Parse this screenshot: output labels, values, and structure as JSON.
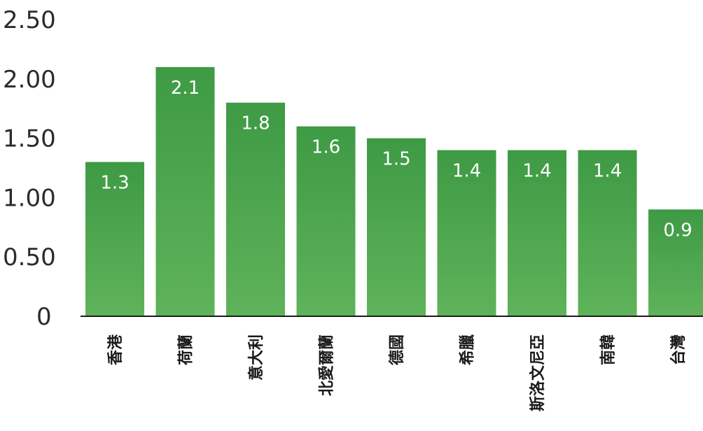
{
  "chart_data": {
    "type": "bar",
    "title": "",
    "xlabel": "",
    "ylabel": "",
    "ylim": [
      0,
      2.5
    ],
    "yticks": [
      "0",
      "0.50",
      "1.00",
      "1.50",
      "2.00",
      "2.50"
    ],
    "ytick_values": [
      0,
      0.5,
      1.0,
      1.5,
      2.0,
      2.5
    ],
    "categories": [
      "香港",
      "荷蘭",
      "意大利",
      "北愛爾蘭",
      "德國",
      "希臘",
      "斯洛文尼亞",
      "南韓",
      "台灣"
    ],
    "values": [
      1.3,
      2.1,
      1.8,
      1.6,
      1.5,
      1.4,
      1.4,
      1.4,
      0.9
    ],
    "value_labels": [
      "1.3",
      "2.1",
      "1.8",
      "1.6",
      "1.5",
      "1.4",
      "1.4",
      "1.4",
      "0.9"
    ],
    "grid": false,
    "bar_color_top": "#3e9a44",
    "bar_color_bottom": "#5fb35a",
    "value_label_color": "#ffffff"
  }
}
